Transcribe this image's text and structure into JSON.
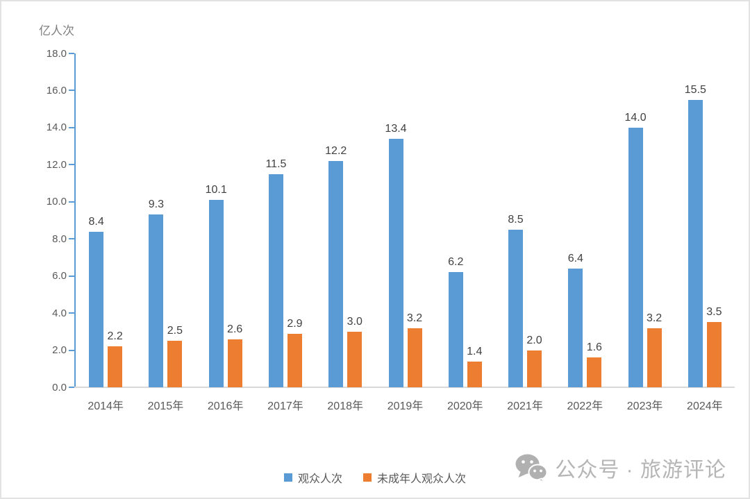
{
  "chart_data": {
    "type": "bar",
    "unit_label": "亿人次",
    "categories": [
      "2014年",
      "2015年",
      "2016年",
      "2017年",
      "2018年",
      "2019年",
      "2020年",
      "2021年",
      "2022年",
      "2023年",
      "2024年"
    ],
    "series": [
      {
        "name": "观众人次",
        "color": "#5b9bd5",
        "values": [
          8.4,
          9.3,
          10.1,
          11.5,
          12.2,
          13.4,
          6.2,
          8.5,
          6.4,
          14.0,
          15.5
        ]
      },
      {
        "name": "未成年人观众人次",
        "color": "#ed7d31",
        "values": [
          2.2,
          2.5,
          2.6,
          2.9,
          3.0,
          3.2,
          1.4,
          2.0,
          1.6,
          3.2,
          3.5
        ]
      }
    ],
    "ylim": [
      0,
      18
    ],
    "ytick_step": 2,
    "grid": false,
    "legend_position": "bottom-center",
    "data_labels": true
  },
  "watermark": {
    "text": "公众号 · 旅游评论"
  },
  "colors": {
    "y_axis": "#5b9bd5",
    "x_axis": "#d9d9d9",
    "tick_text": "#595959",
    "data_label_text": "#404040",
    "watermark_gray": "#b5b5b5"
  }
}
